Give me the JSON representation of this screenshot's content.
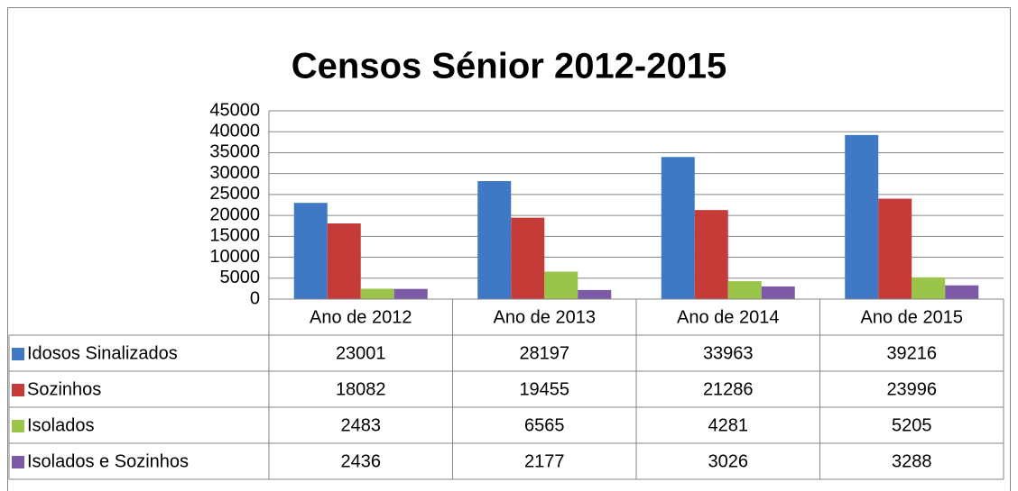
{
  "chart_data": {
    "type": "bar",
    "title": "Censos Sénior 2012-2015",
    "categories": [
      "Ano de 2012",
      "Ano de 2013",
      "Ano de 2014",
      "Ano de 2015"
    ],
    "series": [
      {
        "name": "Idosos Sinalizados",
        "color": "#3f78c4",
        "values": [
          23001,
          28197,
          33963,
          39216
        ]
      },
      {
        "name": "Sozinhos",
        "color": "#c43b38",
        "values": [
          18082,
          19455,
          21286,
          23996
        ]
      },
      {
        "name": "Isolados",
        "color": "#9bc44a",
        "values": [
          2483,
          6565,
          4281,
          5205
        ]
      },
      {
        "name": "Isolados e Sozinhos",
        "color": "#7d5aa6",
        "values": [
          2436,
          2177,
          3026,
          3288
        ]
      }
    ],
    "ylim": [
      0,
      45000
    ],
    "yticks": [
      0,
      5000,
      10000,
      15000,
      20000,
      25000,
      30000,
      35000,
      40000,
      45000
    ],
    "grid": true,
    "data_table": true
  }
}
